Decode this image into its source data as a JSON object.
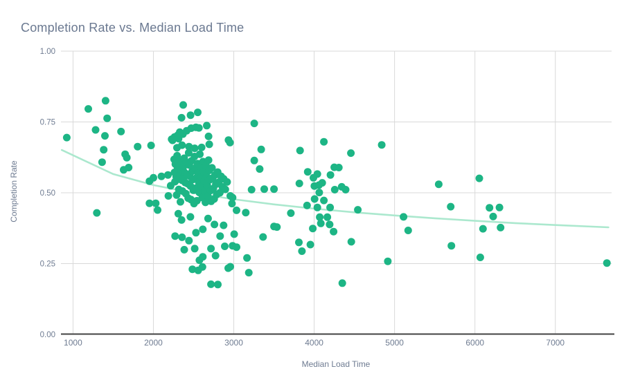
{
  "chart": {
    "title": "Completion Rate vs. Median Load Time",
    "xlabel": "Median Load Time",
    "ylabel": "Completion Rate"
  },
  "chart_data": {
    "type": "scatter",
    "title": "Completion Rate vs. Median Load Time",
    "xlabel": "Median Load Time",
    "ylabel": "Completion Rate",
    "xlim": [
      850,
      7700
    ],
    "ylim": [
      0,
      1
    ],
    "xticks": [
      1000,
      2000,
      3000,
      4000,
      5000,
      6000,
      7000
    ],
    "yticks": [
      0,
      0.25,
      0.5,
      0.75,
      1
    ],
    "ytick_labels": [
      "0.00",
      "0.25",
      "0.50",
      "0.75",
      "1.00"
    ],
    "grid": true,
    "legend": false,
    "colors": {
      "marker": "#1db585",
      "trend": "#abe8ce",
      "grid": "#d9d9d9",
      "axis": "#424242",
      "text": "#6e7b91",
      "title": "#6a7890"
    },
    "trend": {
      "type": "power-fit",
      "points": [
        [
          860,
          0.651
        ],
        [
          1500,
          0.566
        ],
        [
          2000,
          0.527
        ],
        [
          2500,
          0.499
        ],
        [
          3000,
          0.477
        ],
        [
          3500,
          0.459
        ],
        [
          4000,
          0.444
        ],
        [
          4500,
          0.431
        ],
        [
          5000,
          0.42
        ],
        [
          5500,
          0.41
        ],
        [
          6000,
          0.401
        ],
        [
          6500,
          0.393
        ],
        [
          7000,
          0.386
        ],
        [
          7660,
          0.378
        ]
      ]
    },
    "points": [
      [
        922,
        0.695
      ],
      [
        1190,
        0.796
      ],
      [
        1281,
        0.722
      ],
      [
        1296,
        0.429
      ],
      [
        1362,
        0.608
      ],
      [
        1382,
        0.652
      ],
      [
        1397,
        0.701
      ],
      [
        1405,
        0.825
      ],
      [
        1425,
        0.763
      ],
      [
        1597,
        0.716
      ],
      [
        1630,
        0.581
      ],
      [
        1649,
        0.636
      ],
      [
        1692,
        0.589
      ],
      [
        1669,
        0.624
      ],
      [
        1804,
        0.663
      ],
      [
        1951,
        0.541
      ],
      [
        1971,
        0.667
      ],
      [
        2000,
        0.553
      ],
      [
        2029,
        0.463
      ],
      [
        1951,
        0.463
      ],
      [
        2052,
        0.439
      ],
      [
        2100,
        0.558
      ],
      [
        2181,
        0.563
      ],
      [
        2186,
        0.489
      ],
      [
        2215,
        0.525
      ],
      [
        2310,
        0.426
      ],
      [
        2371,
        0.81
      ],
      [
        2350,
        0.765
      ],
      [
        2462,
        0.774
      ],
      [
        2552,
        0.784
      ],
      [
        2238,
        0.685
      ],
      [
        2302,
        0.703
      ],
      [
        2367,
        0.707
      ],
      [
        2414,
        0.719
      ],
      [
        2471,
        0.728
      ],
      [
        2529,
        0.731
      ],
      [
        2566,
        0.729
      ],
      [
        2664,
        0.737
      ],
      [
        2264,
        0.697
      ],
      [
        2328,
        0.714
      ],
      [
        2686,
        0.699
      ],
      [
        2227,
        0.689
      ],
      [
        2313,
        0.691
      ],
      [
        2953,
        0.677
      ],
      [
        2695,
        0.671
      ],
      [
        2356,
        0.668
      ],
      [
        2293,
        0.659
      ],
      [
        2442,
        0.663
      ],
      [
        2514,
        0.657
      ],
      [
        2600,
        0.66
      ],
      [
        2258,
        0.618
      ],
      [
        2262,
        0.572
      ],
      [
        2268,
        0.539
      ],
      [
        2273,
        0.601
      ],
      [
        2284,
        0.557
      ],
      [
        2289,
        0.492
      ],
      [
        2295,
        0.631
      ],
      [
        2301,
        0.585
      ],
      [
        2308,
        0.548
      ],
      [
        2316,
        0.512
      ],
      [
        2322,
        0.594
      ],
      [
        2329,
        0.562
      ],
      [
        2336,
        0.468
      ],
      [
        2343,
        0.611
      ],
      [
        2349,
        0.578
      ],
      [
        2357,
        0.544
      ],
      [
        2362,
        0.506
      ],
      [
        2369,
        0.589
      ],
      [
        2375,
        0.553
      ],
      [
        2383,
        0.622
      ],
      [
        2390,
        0.571
      ],
      [
        2396,
        0.536
      ],
      [
        2403,
        0.497
      ],
      [
        2411,
        0.607
      ],
      [
        2418,
        0.565
      ],
      [
        2426,
        0.532
      ],
      [
        2433,
        0.481
      ],
      [
        2439,
        0.641
      ],
      [
        2446,
        0.598
      ],
      [
        2452,
        0.559
      ],
      [
        2460,
        0.524
      ],
      [
        2467,
        0.476
      ],
      [
        2475,
        0.613
      ],
      [
        2482,
        0.576
      ],
      [
        2490,
        0.547
      ],
      [
        2497,
        0.509
      ],
      [
        2505,
        0.462
      ],
      [
        2511,
        0.628
      ],
      [
        2519,
        0.587
      ],
      [
        2526,
        0.551
      ],
      [
        2534,
        0.517
      ],
      [
        2541,
        0.472
      ],
      [
        2549,
        0.603
      ],
      [
        2556,
        0.569
      ],
      [
        2564,
        0.538
      ],
      [
        2571,
        0.501
      ],
      [
        2578,
        0.636
      ],
      [
        2586,
        0.592
      ],
      [
        2594,
        0.556
      ],
      [
        2601,
        0.522
      ],
      [
        2609,
        0.483
      ],
      [
        2617,
        0.61
      ],
      [
        2624,
        0.574
      ],
      [
        2632,
        0.541
      ],
      [
        2639,
        0.505
      ],
      [
        2647,
        0.466
      ],
      [
        2655,
        0.596
      ],
      [
        2663,
        0.558
      ],
      [
        2670,
        0.527
      ],
      [
        2678,
        0.488
      ],
      [
        2686,
        0.615
      ],
      [
        2694,
        0.579
      ],
      [
        2702,
        0.546
      ],
      [
        2710,
        0.508
      ],
      [
        2719,
        0.47
      ],
      [
        2728,
        0.588
      ],
      [
        2737,
        0.552
      ],
      [
        2746,
        0.515
      ],
      [
        2756,
        0.478
      ],
      [
        2766,
        0.563
      ],
      [
        2777,
        0.53
      ],
      [
        2788,
        0.494
      ],
      [
        2800,
        0.573
      ],
      [
        2813,
        0.537
      ],
      [
        2827,
        0.5
      ],
      [
        2842,
        0.558
      ],
      [
        2858,
        0.521
      ],
      [
        2875,
        0.549
      ],
      [
        2895,
        0.512
      ],
      [
        2917,
        0.538
      ],
      [
        2759,
        0.388
      ],
      [
        2873,
        0.385
      ],
      [
        2529,
        0.359
      ],
      [
        2615,
        0.371
      ],
      [
        2270,
        0.347
      ],
      [
        2356,
        0.343
      ],
      [
        2442,
        0.331
      ],
      [
        2830,
        0.347
      ],
      [
        2888,
        0.311
      ],
      [
        2716,
        0.303
      ],
      [
        2384,
        0.299
      ],
      [
        2514,
        0.303
      ],
      [
        2572,
        0.262
      ],
      [
        2615,
        0.274
      ],
      [
        2773,
        0.278
      ],
      [
        2485,
        0.23
      ],
      [
        2557,
        0.226
      ],
      [
        2610,
        0.238
      ],
      [
        2931,
        0.234
      ],
      [
        2716,
        0.177
      ],
      [
        2802,
        0.176
      ],
      [
        2350,
        0.404
      ],
      [
        2460,
        0.415
      ],
      [
        2680,
        0.409
      ],
      [
        2934,
        0.686
      ],
      [
        3255,
        0.745
      ],
      [
        3341,
        0.653
      ],
      [
        3255,
        0.614
      ],
      [
        3322,
        0.584
      ],
      [
        3221,
        0.511
      ],
      [
        3379,
        0.513
      ],
      [
        3500,
        0.513
      ],
      [
        2957,
        0.489
      ],
      [
        2985,
        0.483
      ],
      [
        2977,
        0.462
      ],
      [
        3034,
        0.438
      ],
      [
        3149,
        0.43
      ],
      [
        3500,
        0.381
      ],
      [
        3005,
        0.354
      ],
      [
        2985,
        0.313
      ],
      [
        3034,
        0.308
      ],
      [
        3364,
        0.344
      ],
      [
        3164,
        0.27
      ],
      [
        2957,
        0.239
      ],
      [
        3187,
        0.218
      ],
      [
        4121,
        0.68
      ],
      [
        3824,
        0.649
      ],
      [
        4457,
        0.64
      ],
      [
        3920,
        0.574
      ],
      [
        4250,
        0.59
      ],
      [
        4307,
        0.589
      ],
      [
        3991,
        0.553
      ],
      [
        4040,
        0.566
      ],
      [
        4203,
        0.563
      ],
      [
        3816,
        0.533
      ],
      [
        4003,
        0.524
      ],
      [
        4060,
        0.527
      ],
      [
        4100,
        0.535
      ],
      [
        4256,
        0.511
      ],
      [
        4342,
        0.521
      ],
      [
        4391,
        0.511
      ],
      [
        4063,
        0.501
      ],
      [
        4005,
        0.478
      ],
      [
        4121,
        0.473
      ],
      [
        3911,
        0.455
      ],
      [
        4040,
        0.448
      ],
      [
        4198,
        0.448
      ],
      [
        4543,
        0.44
      ],
      [
        3710,
        0.428
      ],
      [
        3537,
        0.379
      ],
      [
        4069,
        0.414
      ],
      [
        4164,
        0.414
      ],
      [
        4083,
        0.392
      ],
      [
        3983,
        0.374
      ],
      [
        4192,
        0.388
      ],
      [
        4241,
        0.363
      ],
      [
        3810,
        0.325
      ],
      [
        3953,
        0.317
      ],
      [
        4462,
        0.327
      ],
      [
        3848,
        0.294
      ],
      [
        4350,
        0.181
      ],
      [
        4840,
        0.669
      ],
      [
        4916,
        0.258
      ],
      [
        5112,
        0.415
      ],
      [
        5169,
        0.367
      ],
      [
        5549,
        0.53
      ],
      [
        5698,
        0.451
      ],
      [
        5707,
        0.313
      ],
      [
        6054,
        0.551
      ],
      [
        6066,
        0.272
      ],
      [
        6100,
        0.373
      ],
      [
        6181,
        0.447
      ],
      [
        6227,
        0.416
      ],
      [
        6305,
        0.448
      ],
      [
        6319,
        0.377
      ],
      [
        7641,
        0.252
      ]
    ]
  }
}
